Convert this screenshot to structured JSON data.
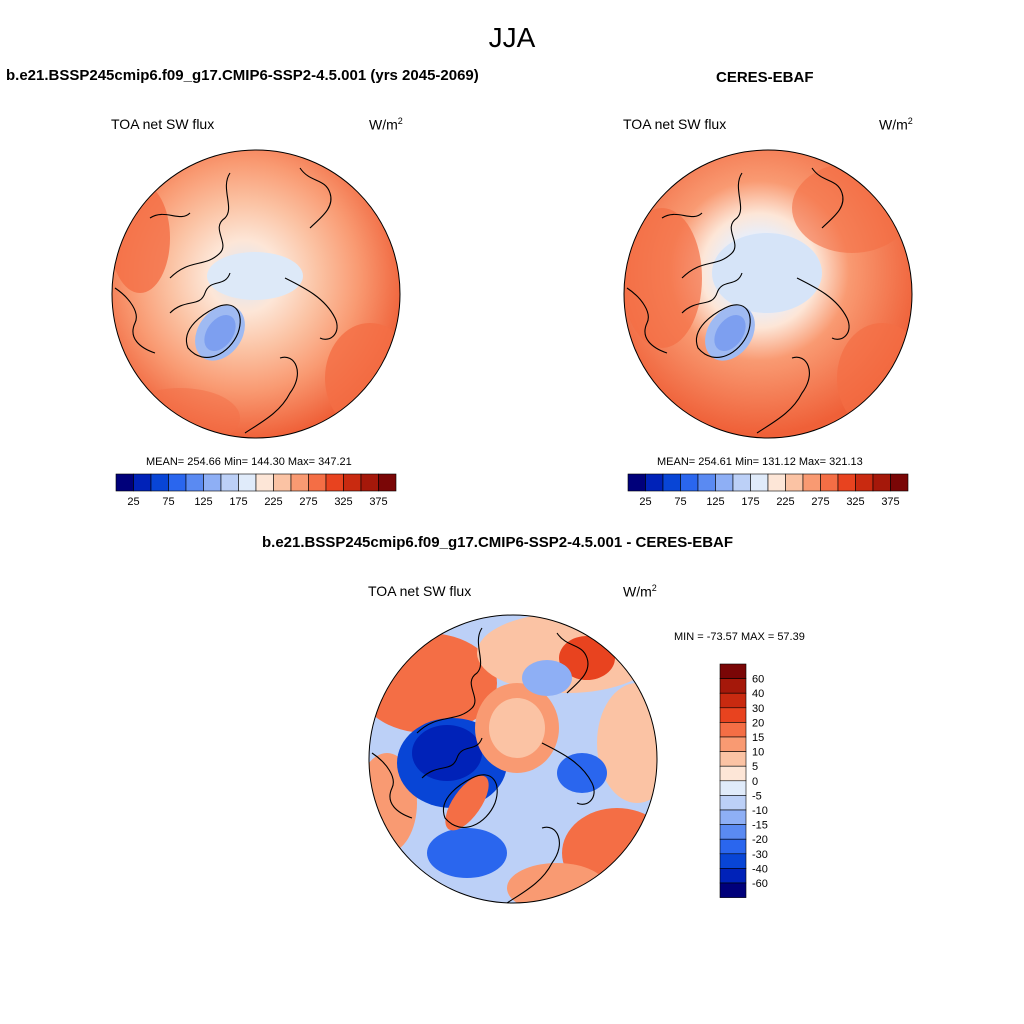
{
  "main_title": "JJA",
  "panels": [
    {
      "title": "b.e21.BSSP245cmip6.f09_g17.CMIP6-SSP2-4.5.001 (yrs 2045-2069)",
      "variable": "TOA net SW flux",
      "units_base": "W/m",
      "units_exp": "2",
      "stats": "MEAN= 254.66  Min= 144.30  Max= 347.21"
    },
    {
      "title": "CERES-EBAF",
      "variable": "TOA net SW flux",
      "units_base": "W/m",
      "units_exp": "2",
      "stats": "MEAN= 254.61  Min= 131.12  Max= 321.13"
    },
    {
      "title": "b.e21.BSSP245cmip6.f09_g17.CMIP6-SSP2-4.5.001 - CERES-EBAF",
      "variable": "TOA net SW flux",
      "units_base": "W/m",
      "units_exp": "2",
      "stats": "MIN = -73.57 MAX =  57.39"
    }
  ],
  "abs_colorbar": {
    "colors": [
      "#00007a",
      "#0022b8",
      "#0845d6",
      "#2a66ee",
      "#5a8af2",
      "#8eaff5",
      "#bcd0f7",
      "#e0ebfa",
      "#fde6d7",
      "#fbc3a4",
      "#f99a72",
      "#f46e45",
      "#e8431f",
      "#c92a10",
      "#a5180a",
      "#7a0606"
    ],
    "tick_labels": [
      "25",
      "75",
      "125",
      "175",
      "225",
      "275",
      "325",
      "375"
    ]
  },
  "diff_colorbar": {
    "colors": [
      "#00007a",
      "#0022b8",
      "#0845d6",
      "#2a66ee",
      "#5a8af2",
      "#8eaff5",
      "#bcd0f7",
      "#e0ebfa",
      "#fde6d7",
      "#fbc3a4",
      "#f99a72",
      "#f46e45",
      "#e8431f",
      "#c92a10",
      "#a5180a",
      "#7a0606"
    ],
    "tick_labels": [
      "60",
      "40",
      "30",
      "20",
      "15",
      "10",
      "5",
      "0",
      "-5",
      "-10",
      "-15",
      "-20",
      "-30",
      "-40",
      "-60"
    ]
  },
  "icons": [
    "polar-map-icon",
    "coastline-icon"
  ]
}
